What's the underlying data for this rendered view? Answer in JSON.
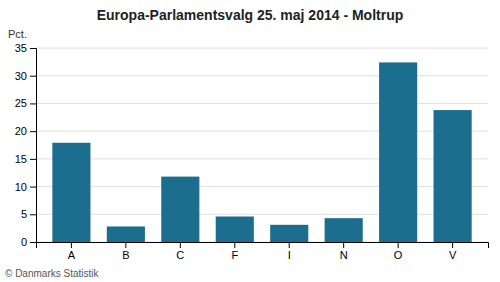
{
  "chart_data": {
    "type": "bar",
    "title": "Europa-Parlamentsvalg 25. maj 2014 - Moltrup",
    "categories": [
      "A",
      "B",
      "C",
      "F",
      "I",
      "N",
      "O",
      "V"
    ],
    "values": [
      17.9,
      2.8,
      11.8,
      4.6,
      3.1,
      4.3,
      32.4,
      23.8
    ],
    "color": "#1b6e8e",
    "ylabel": "Pct.",
    "ylim": [
      0,
      35
    ],
    "yticks": [
      0,
      5,
      10,
      15,
      20,
      25,
      30,
      35
    ],
    "grid": true,
    "footnote": "© Danmarks Statistik"
  }
}
